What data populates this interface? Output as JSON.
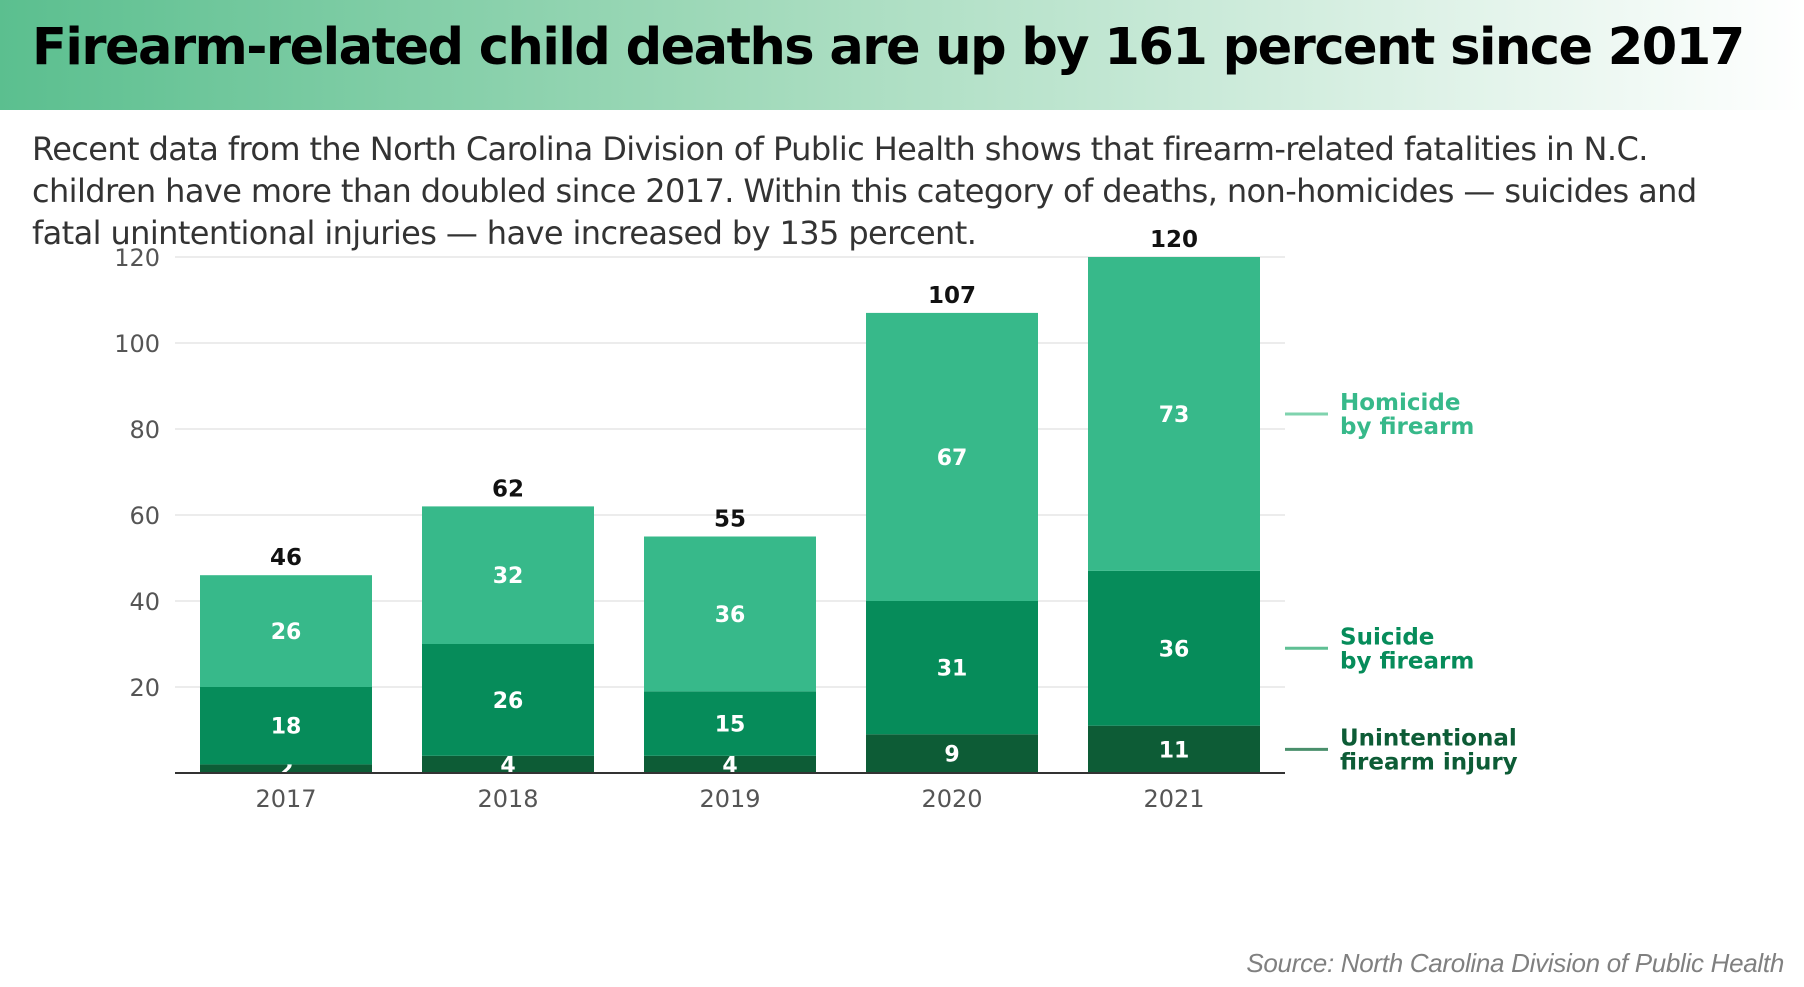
{
  "title": "Firearm-related child deaths are up by 161 percent since 2017",
  "subtitle": "Recent data from the North Carolina Division of Public Health shows that firearm-related fatalities in N.C. children have more than doubled since 2017. Within this category of deaths, non-homicides — suicides and fatal unintentional injuries — have increased by 135 percent.",
  "source": "Source: North Carolina Division of Public Health",
  "colors": {
    "homicide": "#37b98a",
    "suicide": "#068c5a",
    "unintentional": "#0d5c36",
    "grid": "#e6e6e6",
    "axis": "#333333",
    "tick_text": "#555555"
  },
  "chart_data": {
    "type": "bar",
    "stacked": true,
    "categories": [
      "2017",
      "2018",
      "2019",
      "2020",
      "2021"
    ],
    "series": [
      {
        "name": "Unintentional firearm injury",
        "values": [
          2,
          4,
          4,
          9,
          11
        ]
      },
      {
        "name": "Suicide by firearm",
        "values": [
          18,
          26,
          15,
          31,
          36
        ]
      },
      {
        "name": "Homicide by firearm",
        "values": [
          26,
          32,
          36,
          67,
          73
        ]
      }
    ],
    "totals": [
      46,
      62,
      55,
      107,
      120
    ],
    "legend_labels": [
      [
        "Homicide",
        "by firearm"
      ],
      [
        "Suicide",
        "by firearm"
      ],
      [
        "Unintentional",
        "firearm injury"
      ]
    ],
    "ylim": [
      0,
      120
    ],
    "yticks": [
      20,
      40,
      60,
      80,
      100,
      120
    ],
    "grid": true,
    "legend_placement": "right"
  }
}
